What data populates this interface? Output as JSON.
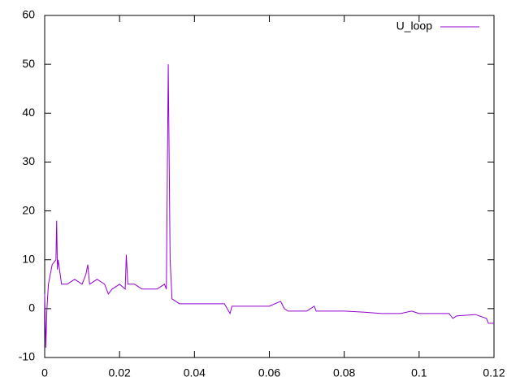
{
  "chart_data": {
    "type": "line",
    "x": [
      0,
      0.0003,
      0.0006,
      0.001,
      0.0015,
      0.002,
      0.003,
      0.0032,
      0.0034,
      0.0036,
      0.0045,
      0.006,
      0.008,
      0.01,
      0.011,
      0.0115,
      0.012,
      0.014,
      0.016,
      0.017,
      0.018,
      0.02,
      0.0215,
      0.0218,
      0.0222,
      0.024,
      0.026,
      0.028,
      0.03,
      0.032,
      0.0325,
      0.033,
      0.0335,
      0.034,
      0.036,
      0.04,
      0.044,
      0.048,
      0.0495,
      0.05,
      0.055,
      0.06,
      0.063,
      0.064,
      0.065,
      0.07,
      0.072,
      0.0725,
      0.08,
      0.085,
      0.09,
      0.095,
      0.098,
      0.1,
      0.105,
      0.108,
      0.109,
      0.11,
      0.115,
      0.118,
      0.1185,
      0.12
    ],
    "series": [
      {
        "name": "U_loop",
        "color": "#9400d3",
        "values": [
          3,
          -8,
          0,
          5,
          7,
          9,
          10,
          18,
          8,
          10,
          5,
          5,
          6,
          5,
          7,
          9,
          5,
          6,
          5,
          3,
          4,
          5,
          4,
          11,
          5,
          5,
          4,
          4,
          4,
          5,
          4,
          50,
          10,
          2,
          1,
          1,
          1,
          1,
          -1,
          0.5,
          0.5,
          0.5,
          1.5,
          0,
          -0.5,
          -0.5,
          0.5,
          -0.5,
          -0.5,
          -0.7,
          -1,
          -1,
          -0.5,
          -1,
          -1,
          -1,
          -2,
          -1.5,
          -1.2,
          -2,
          -3,
          -3
        ]
      }
    ],
    "xlim": [
      0,
      0.12
    ],
    "xticks": [
      0,
      0.02,
      0.04,
      0.06,
      0.08,
      0.1,
      0.12
    ],
    "ylim": [
      -10,
      60
    ],
    "yticks": [
      -10,
      0,
      10,
      20,
      30,
      40,
      50,
      60
    ],
    "legend": "top-right"
  }
}
